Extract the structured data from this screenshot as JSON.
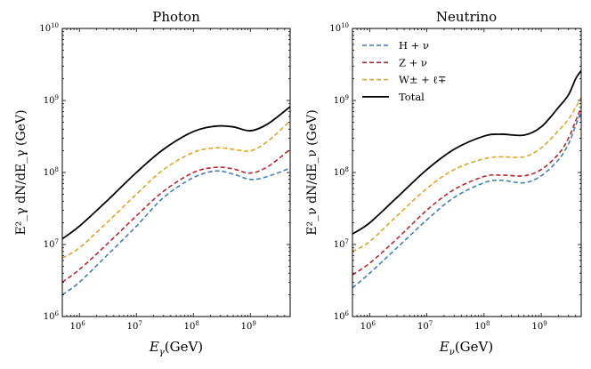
{
  "chart_data": [
    {
      "type": "line",
      "title": "Photon",
      "xlabel": "E_γ(GeV)",
      "ylabel": "E²_γ dN/dE_γ (GeV)",
      "xscale": "log",
      "yscale": "log",
      "xlim": [
        500000,
        5000000000
      ],
      "ylim": [
        1000000,
        10000000000
      ],
      "xticks": [
        {
          "value": 1000000,
          "label": "10",
          "exp": "6"
        },
        {
          "value": 10000000,
          "label": "10",
          "exp": "7"
        },
        {
          "value": 100000000,
          "label": "10",
          "exp": "8"
        },
        {
          "value": 1000000000,
          "label": "10",
          "exp": "9"
        }
      ],
      "yticks": [
        {
          "value": 1000000,
          "label": "10",
          "exp": "6"
        },
        {
          "value": 10000000,
          "label": "10",
          "exp": "7"
        },
        {
          "value": 100000000,
          "label": "10",
          "exp": "8"
        },
        {
          "value": 1000000000,
          "label": "10",
          "exp": "9"
        },
        {
          "value": 10000000000,
          "label": "10",
          "exp": "10"
        }
      ],
      "series": [
        {
          "name": "H + ν",
          "color": "#3f7fbf",
          "dash": "dashed",
          "x": [
            500000,
            1000000,
            3000000,
            10000000,
            30000000,
            100000000,
            250000000,
            500000000,
            1000000000,
            2000000000,
            5000000000
          ],
          "y": [
            2000000,
            3000000,
            7000000,
            18000000,
            45000000,
            85000000,
            105000000,
            95000000,
            80000000,
            88000000,
            115000000
          ]
        },
        {
          "name": "Z + ν",
          "color": "#b7272d",
          "dash": "dashed",
          "x": [
            500000,
            1000000,
            3000000,
            10000000,
            30000000,
            100000000,
            250000000,
            500000000,
            1000000000,
            2000000000,
            5000000000
          ],
          "y": [
            3000000,
            4500000,
            10000000,
            25000000,
            55000000,
            100000000,
            118000000,
            112000000,
            98000000,
            120000000,
            210000000
          ]
        },
        {
          "name": "W± + ℓ∓",
          "color": "#e0a526",
          "dash": "dashed",
          "x": [
            500000,
            1000000,
            3000000,
            10000000,
            30000000,
            100000000,
            250000000,
            500000000,
            1000000000,
            2000000000,
            5000000000
          ],
          "y": [
            6500000,
            9000000,
            20000000,
            50000000,
            110000000,
            190000000,
            220000000,
            210000000,
            200000000,
            270000000,
            520000000
          ]
        },
        {
          "name": "Total",
          "color": "#000000",
          "dash": "solid",
          "x": [
            500000,
            1000000,
            3000000,
            10000000,
            30000000,
            100000000,
            250000000,
            500000000,
            1000000000,
            2000000000,
            5000000000
          ],
          "y": [
            12000000,
            18000000,
            40000000,
            100000000,
            210000000,
            370000000,
            440000000,
            430000000,
            380000000,
            470000000,
            820000000
          ]
        }
      ]
    },
    {
      "type": "line",
      "title": "Neutrino",
      "xlabel": "E_ν(GeV)",
      "ylabel": "E²_ν dN/dE_ν (GeV)",
      "xscale": "log",
      "yscale": "log",
      "xlim": [
        500000,
        5000000000
      ],
      "ylim": [
        1000000,
        10000000000
      ],
      "legend": "top-left",
      "xticks": [
        {
          "value": 1000000,
          "label": "10",
          "exp": "6"
        },
        {
          "value": 10000000,
          "label": "10",
          "exp": "7"
        },
        {
          "value": 100000000,
          "label": "10",
          "exp": "8"
        },
        {
          "value": 1000000000,
          "label": "10",
          "exp": "9"
        }
      ],
      "yticks": [
        {
          "value": 1000000,
          "label": "10",
          "exp": "6"
        },
        {
          "value": 10000000,
          "label": "10",
          "exp": "7"
        },
        {
          "value": 100000000,
          "label": "10",
          "exp": "8"
        },
        {
          "value": 1000000000,
          "label": "10",
          "exp": "9"
        },
        {
          "value": 10000000000,
          "label": "10",
          "exp": "10"
        }
      ],
      "series": [
        {
          "name": "H + ν",
          "color": "#3f7fbf",
          "dash": "dashed",
          "x": [
            500000,
            1000000,
            3000000,
            10000000,
            30000000,
            100000000,
            200000000,
            500000000,
            1000000000,
            2000000000,
            3000000000,
            4000000000,
            5000000000
          ],
          "y": [
            2500000,
            4000000,
            9000000,
            22000000,
            45000000,
            72000000,
            78000000,
            72000000,
            90000000,
            150000000,
            250000000,
            450000000,
            700000000
          ]
        },
        {
          "name": "Z + ν",
          "color": "#b7272d",
          "dash": "dashed",
          "x": [
            500000,
            1000000,
            3000000,
            10000000,
            30000000,
            100000000,
            200000000,
            500000000,
            1000000000,
            2000000000,
            3000000000,
            4000000000,
            5000000000
          ],
          "y": [
            3800000,
            5500000,
            12000000,
            30000000,
            58000000,
            88000000,
            92000000,
            90000000,
            110000000,
            180000000,
            300000000,
            520000000,
            800000000
          ]
        },
        {
          "name": "W± + ℓ∓",
          "color": "#e0a526",
          "dash": "dashed",
          "x": [
            500000,
            1000000,
            3000000,
            10000000,
            30000000,
            100000000,
            200000000,
            500000000,
            1000000000,
            2000000000,
            3000000000,
            4000000000,
            5000000000
          ],
          "y": [
            8000000,
            11000000,
            25000000,
            60000000,
            110000000,
            155000000,
            165000000,
            165000000,
            220000000,
            380000000,
            550000000,
            800000000,
            1100000000
          ]
        },
        {
          "name": "Total",
          "color": "#000000",
          "dash": "solid",
          "x": [
            500000,
            1000000,
            3000000,
            10000000,
            30000000,
            100000000,
            200000000,
            500000000,
            1000000000,
            2000000000,
            3000000000,
            4000000000,
            5000000000
          ],
          "y": [
            14000000,
            20000000,
            45000000,
            110000000,
            210000000,
            320000000,
            340000000,
            330000000,
            430000000,
            800000000,
            1200000000,
            2000000000,
            2600000000
          ]
        }
      ]
    }
  ]
}
